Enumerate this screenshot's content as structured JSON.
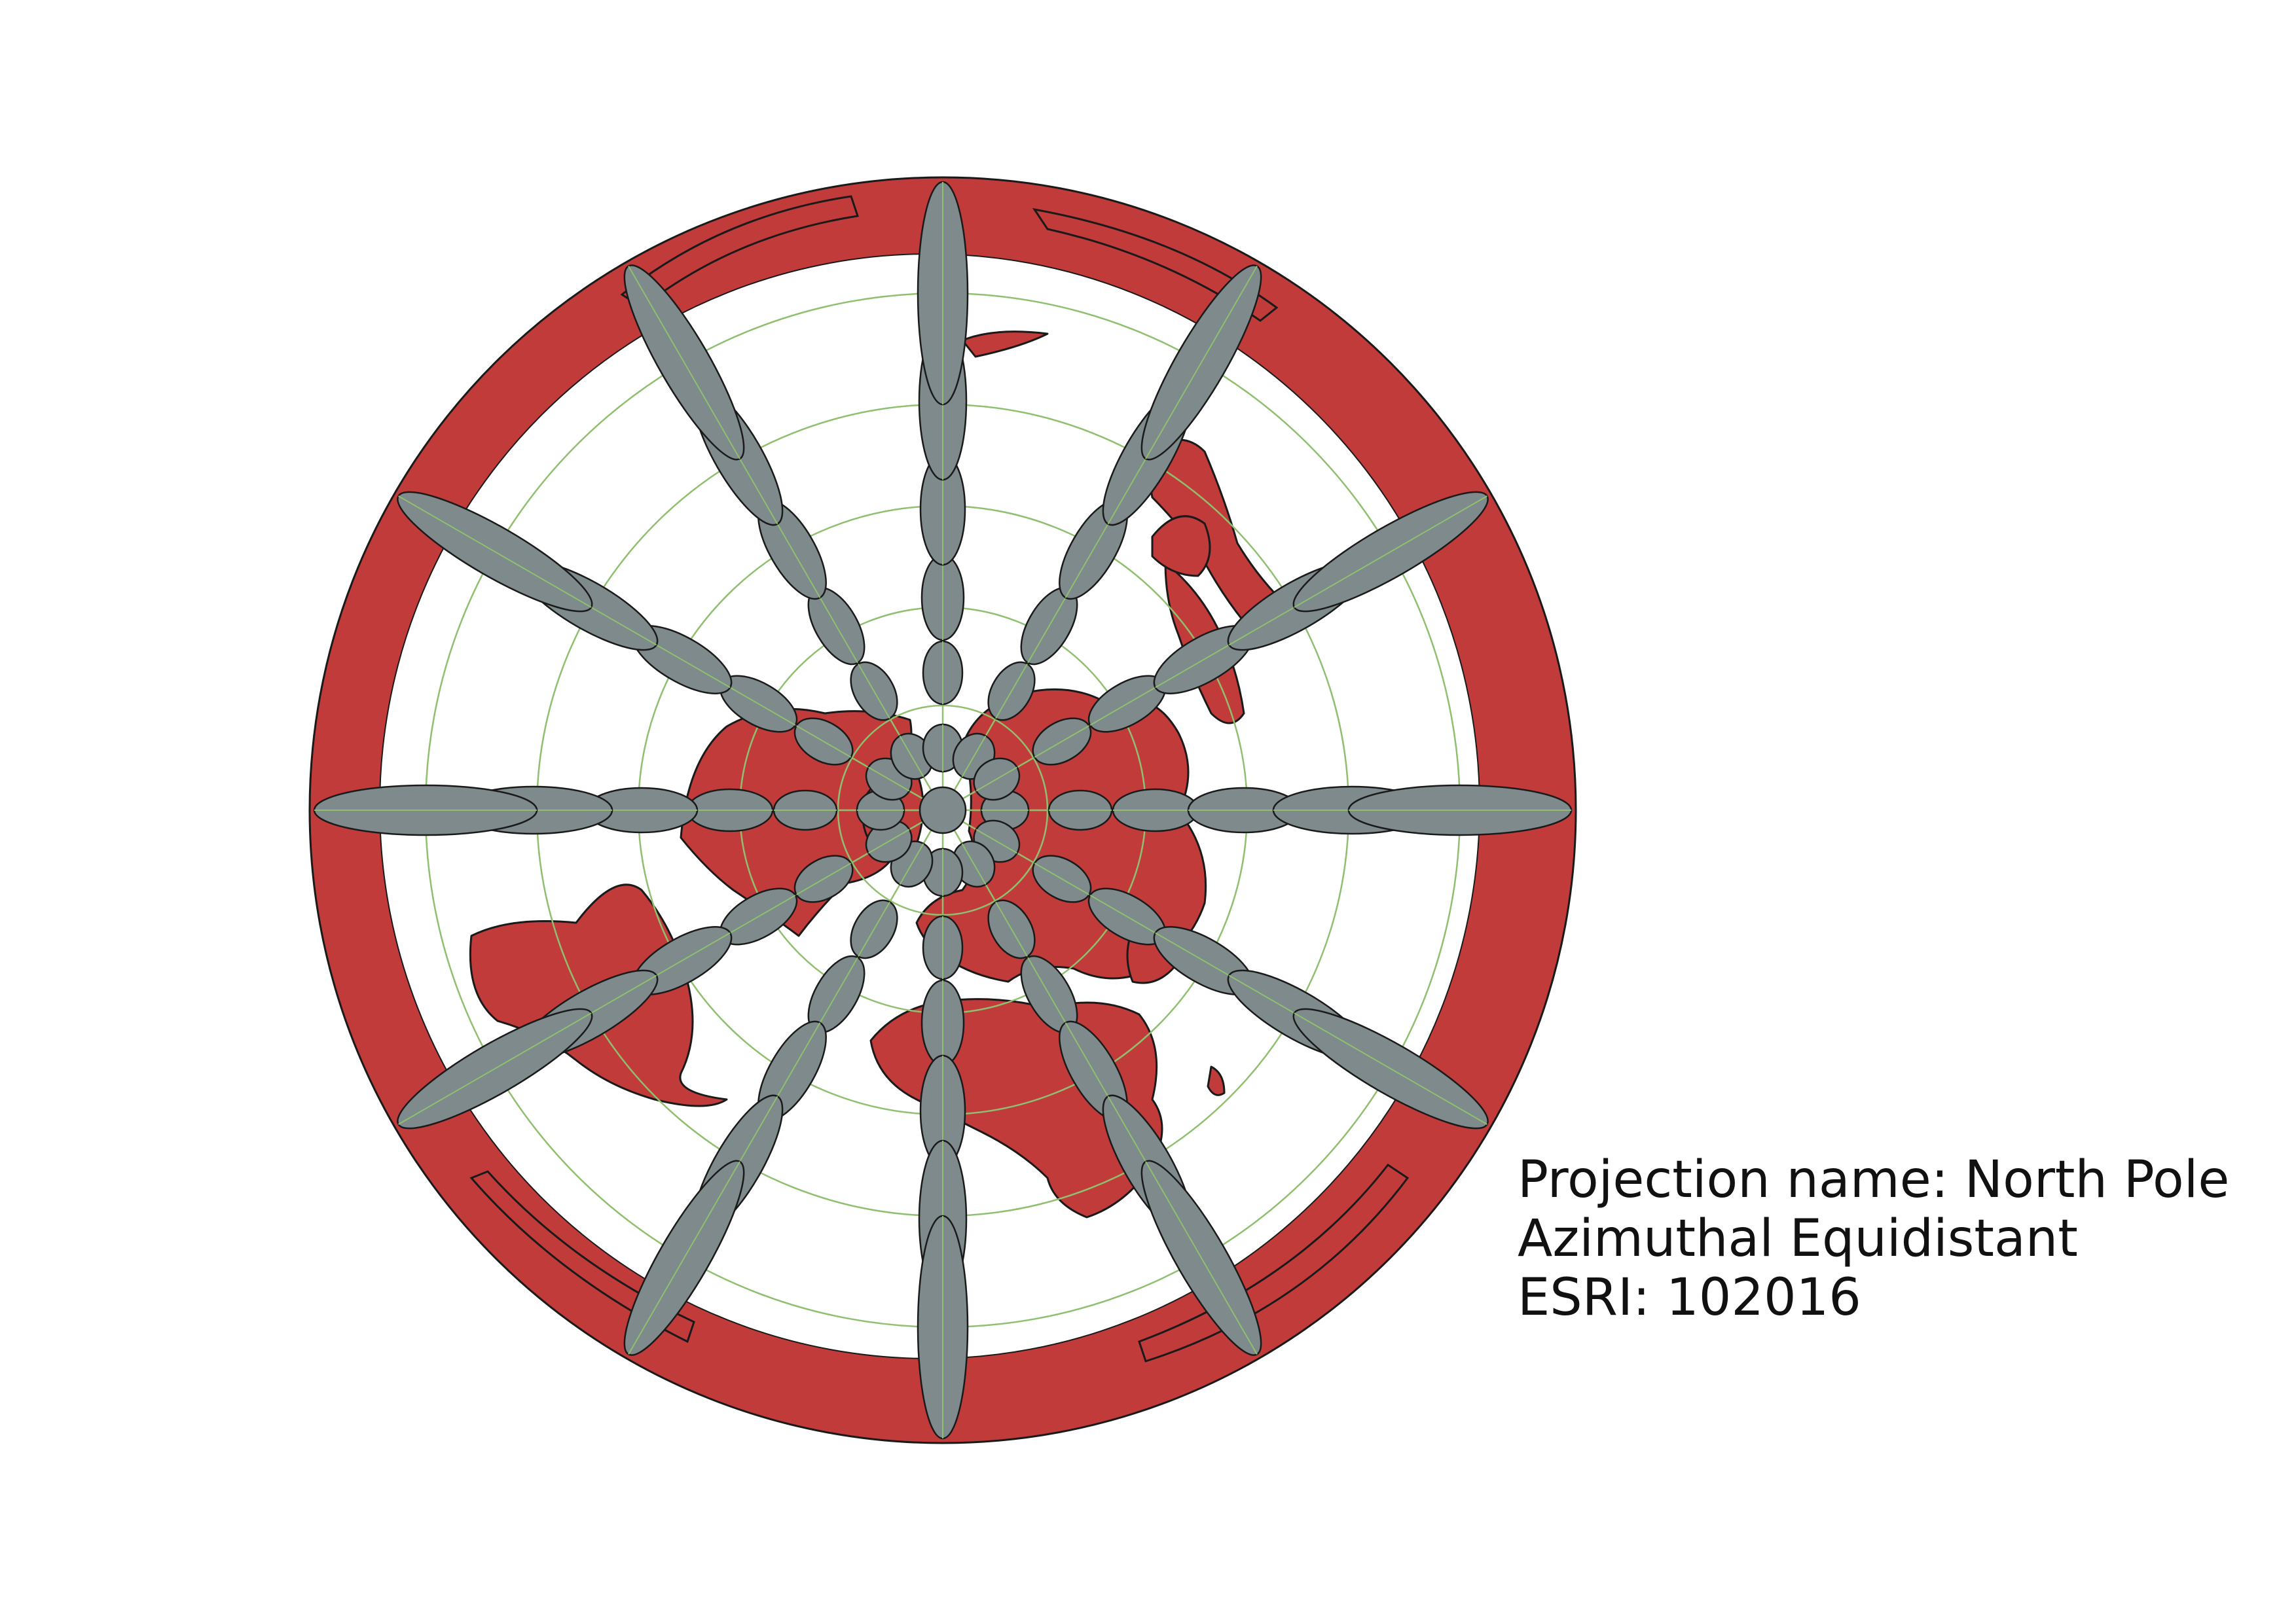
{
  "caption": {
    "line1": "Projection name: North Pole",
    "line2": "Azimuthal Equidistant",
    "line3": "ESRI: 102016"
  },
  "colors": {
    "background": "#ffffff",
    "land": "#c23b3b",
    "outer_ring": "#c23b3b",
    "ocean": "#ffffff",
    "graticule": "#8fbf6f",
    "tissot_fill": "#7f8a8c",
    "outline": "#1a1a1a"
  },
  "map": {
    "projection": "North Pole Azimuthal Equidistant",
    "graticule": {
      "meridian_step_deg": 30,
      "parallels_deg": [
        60,
        30,
        0,
        -30,
        -60
      ]
    },
    "tissot_indicatrix": true,
    "land_layer": "countries"
  }
}
